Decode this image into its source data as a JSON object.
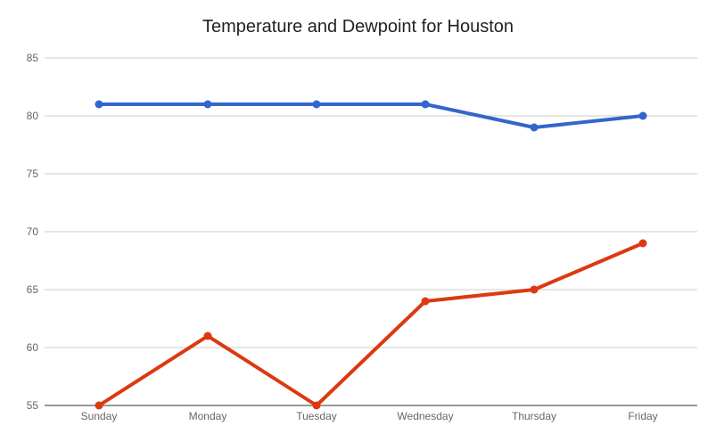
{
  "chart_data": {
    "type": "line",
    "title": "Temperature and Dewpoint for Houston",
    "xlabel": "",
    "ylabel": "",
    "categories": [
      "Sunday",
      "Monday",
      "Tuesday",
      "Wednesday",
      "Thursday",
      "Friday"
    ],
    "ylim": [
      55,
      85
    ],
    "yticks": [
      55,
      60,
      65,
      70,
      75,
      80,
      85
    ],
    "grid": true,
    "legend": "none",
    "series": [
      {
        "values": [
          81,
          81,
          81,
          81,
          79,
          80
        ],
        "color": "#3366cc"
      },
      {
        "values": [
          55,
          61,
          55,
          64,
          65,
          69
        ],
        "color": "#dc3912"
      }
    ]
  }
}
